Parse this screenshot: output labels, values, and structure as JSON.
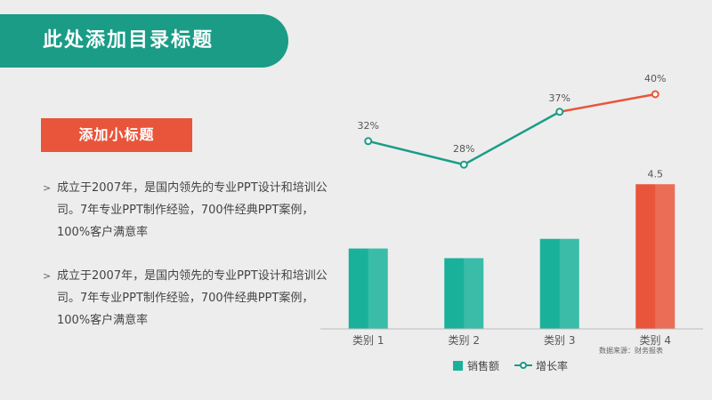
{
  "page": {
    "title": "此处添加目录标题",
    "subtitle": "添加小标题",
    "bullets": [
      "成立于2007年，是国内领先的专业PPT设计和培训公司。7年专业PPT制作经验，700件经典PPT案例，100%客户满意率",
      "成立于2007年，是国内领先的专业PPT设计和培训公司。7年专业PPT制作经验，700件经典PPT案例，100%客户满意率"
    ],
    "bullet_icon": "chevron-right-icon"
  },
  "chart_data": {
    "type": "bar+line",
    "categories": [
      "类别 1",
      "类别 2",
      "类别 3",
      "类别 4"
    ],
    "series": [
      {
        "name": "销售额",
        "type": "bar",
        "values": [
          2.5,
          2.2,
          2.8,
          4.5
        ],
        "data_labels": [
          "",
          "",
          "",
          "4.5"
        ]
      },
      {
        "name": "增长率",
        "type": "line",
        "values": [
          32,
          28,
          37,
          40
        ],
        "data_labels": [
          "32%",
          "28%",
          "37%",
          "40%"
        ]
      }
    ],
    "bar_ylim": [
      0,
      6
    ],
    "line_ylim": [
      0,
      50
    ],
    "colors": {
      "bar": "#1ab19b",
      "bar_highlight": "#e9553a",
      "line": "#1a9c87",
      "line_highlight": "#e9553a"
    },
    "source": "数据来源：财务报表",
    "grid": false,
    "legend": "bottom"
  }
}
